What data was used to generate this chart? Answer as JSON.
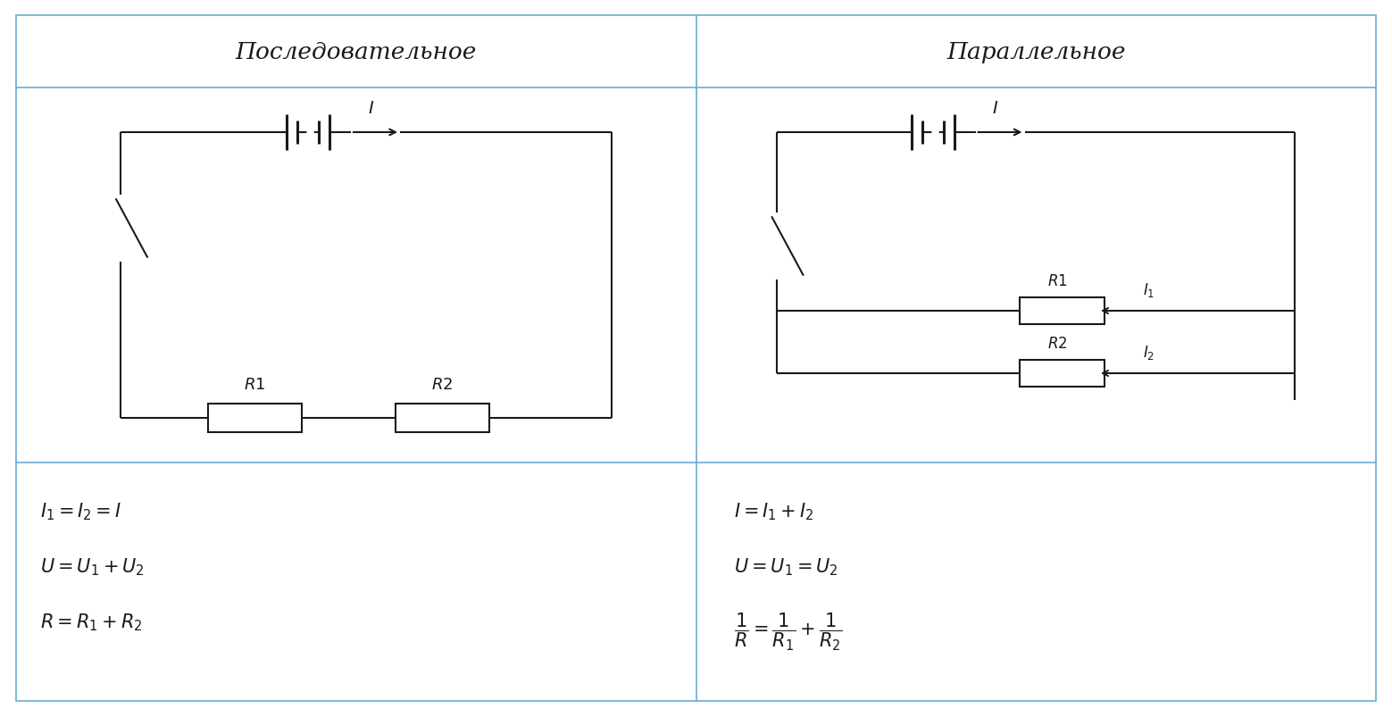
{
  "bg_color": "#f5f5f0",
  "border_color": "#6aaad4",
  "line_color": "#1a1a1a",
  "title_left": "Последовательное",
  "title_right": "Параллельное"
}
